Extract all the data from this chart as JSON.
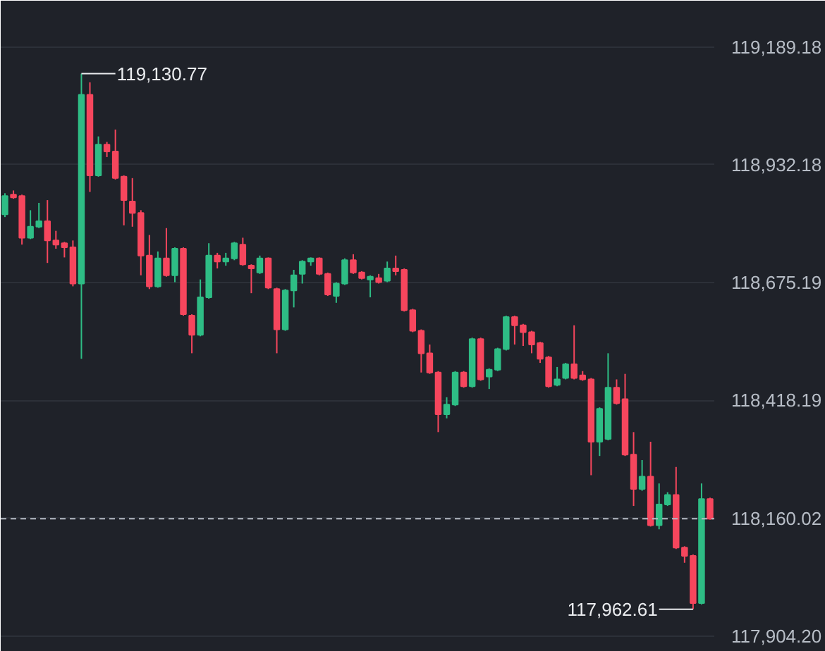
{
  "chart_data": {
    "type": "candlestick",
    "categories": [
      null,
      null,
      null,
      null,
      null,
      null,
      null,
      null,
      null,
      null,
      null,
      null,
      null,
      null,
      null,
      null,
      null,
      null,
      null,
      null,
      null,
      null,
      null,
      null,
      null,
      null,
      null,
      null,
      null,
      null,
      null,
      null,
      null,
      null,
      null,
      null,
      null,
      null,
      null,
      null,
      null,
      null,
      null,
      null,
      null,
      null,
      null,
      null,
      null,
      null,
      null,
      null,
      null,
      null,
      null,
      null,
      null,
      null,
      null,
      null,
      null,
      null,
      null,
      null,
      null,
      null,
      null,
      null,
      null,
      null,
      null,
      null,
      null,
      null,
      null,
      null,
      null,
      null,
      null,
      null,
      null,
      null,
      null,
      null
    ],
    "ohlc": [
      [
        118824,
        118870,
        118818,
        118864
      ],
      [
        118867,
        118876,
        118858,
        118861
      ],
      [
        118864,
        118867,
        118758,
        118773
      ],
      [
        118773,
        118833,
        118770,
        118797
      ],
      [
        118797,
        118849,
        118794,
        118809
      ],
      [
        118809,
        118855,
        118718,
        118767
      ],
      [
        118767,
        118788,
        118749,
        118758
      ],
      [
        118761,
        118764,
        118730,
        118752
      ],
      [
        118752,
        118767,
        118667,
        118673
      ],
      [
        118673,
        119130.77,
        118509,
        119085
      ],
      [
        119085,
        119112,
        118873,
        118909
      ],
      [
        118909,
        118994,
        118906,
        118976
      ],
      [
        118976,
        118982,
        118949,
        118961
      ],
      [
        118961,
        119009,
        118900,
        118903
      ],
      [
        118906,
        118909,
        118800,
        118855
      ],
      [
        118852,
        118903,
        118797,
        118827
      ],
      [
        118827,
        118833,
        118691,
        118734
      ],
      [
        118734,
        118779,
        118661,
        118667
      ],
      [
        118667,
        118743,
        118664,
        118728
      ],
      [
        118728,
        118794,
        118688,
        118691
      ],
      [
        118691,
        118752,
        118676,
        118749
      ],
      [
        118749,
        118752,
        118603,
        118606
      ],
      [
        118603,
        118606,
        118521,
        118561
      ],
      [
        118561,
        118682,
        118558,
        118643
      ],
      [
        118643,
        118761,
        118640,
        118734
      ],
      [
        118734,
        118740,
        118706,
        118721
      ],
      [
        118721,
        118740,
        118712,
        118728
      ],
      [
        118728,
        118764,
        118724,
        118761
      ],
      [
        118758,
        118773,
        118712,
        118715
      ],
      [
        118712,
        118715,
        118652,
        118706
      ],
      [
        118697,
        118734,
        118694,
        118728
      ],
      [
        118728,
        118730,
        118661,
        118664
      ],
      [
        118661,
        118664,
        118521,
        118573
      ],
      [
        118573,
        118661,
        118570,
        118658
      ],
      [
        118658,
        118703,
        118621,
        118691
      ],
      [
        118694,
        118724,
        118673,
        118721
      ],
      [
        118721,
        118730,
        118712,
        118728
      ],
      [
        118728,
        118730,
        118691,
        118694
      ],
      [
        118694,
        118697,
        118646,
        118649
      ],
      [
        118646,
        118676,
        118631,
        118673
      ],
      [
        118673,
        118728,
        118670,
        118724
      ],
      [
        118724,
        118737,
        118694,
        118697
      ],
      [
        118697,
        118700,
        118682,
        118685
      ],
      [
        118682,
        118691,
        118643,
        118688
      ],
      [
        118685,
        118694,
        118673,
        118676
      ],
      [
        118679,
        118721,
        118676,
        118706
      ],
      [
        118706,
        118734,
        118691,
        118700
      ],
      [
        118703,
        118706,
        118612,
        118615
      ],
      [
        118615,
        118618,
        118567,
        118570
      ],
      [
        118570,
        118573,
        118479,
        118521
      ],
      [
        118521,
        118540,
        118476,
        118479
      ],
      [
        118479,
        118482,
        118349,
        118388
      ],
      [
        118388,
        118425,
        118379,
        118409
      ],
      [
        118409,
        118482,
        118406,
        118479
      ],
      [
        118479,
        118482,
        118446,
        118449
      ],
      [
        118449,
        118555,
        118446,
        118552
      ],
      [
        118552,
        118555,
        118461,
        118464
      ],
      [
        118470,
        118488,
        118443,
        118485
      ],
      [
        118485,
        118533,
        118482,
        118530
      ],
      [
        118530,
        118603,
        118527,
        118600
      ],
      [
        118600,
        118603,
        118540,
        118582
      ],
      [
        118582,
        118585,
        118537,
        118567
      ],
      [
        118567,
        118570,
        118521,
        118540
      ],
      [
        118543,
        118546,
        118500,
        118509
      ],
      [
        118512,
        118515,
        118446,
        118449
      ],
      [
        118452,
        118491,
        118449,
        118464
      ],
      [
        118467,
        118500,
        118464,
        118497
      ],
      [
        118497,
        118582,
        118464,
        118467
      ],
      [
        118473,
        118482,
        118461,
        118464
      ],
      [
        118464,
        118467,
        118255,
        118328
      ],
      [
        118328,
        118403,
        118297,
        118400
      ],
      [
        118334,
        118521,
        118331,
        118446
      ],
      [
        118446,
        118464,
        118409,
        118412
      ],
      [
        118421,
        118476,
        118297,
        118300
      ],
      [
        118300,
        118349,
        118188,
        118225
      ],
      [
        118225,
        118288,
        118221,
        118252
      ],
      [
        118252,
        118328,
        118143,
        118146
      ],
      [
        118146,
        118237,
        118137,
        118191
      ],
      [
        118191,
        118218,
        118188,
        118212
      ],
      [
        118212,
        118273,
        118094,
        118097
      ],
      [
        118097,
        118100,
        118064,
        118079
      ],
      [
        118079,
        118082,
        117962.61,
        117976
      ],
      [
        117976,
        118237,
        117973,
        118203
      ],
      [
        118203,
        118206,
        118158,
        118160.02
      ]
    ],
    "colors": [
      "#2ebd85",
      "#f6465d",
      "#f6465d",
      "#2ebd85",
      "#2ebd85",
      "#f6465d",
      "#f6465d",
      "#f6465d",
      "#f6465d",
      "#2ebd85",
      "#f6465d",
      "#2ebd85",
      "#f6465d",
      "#f6465d",
      "#f6465d",
      "#f6465d",
      "#f6465d",
      "#f6465d",
      "#2ebd85",
      "#f6465d",
      "#2ebd85",
      "#f6465d",
      "#f6465d",
      "#2ebd85",
      "#2ebd85",
      "#f6465d",
      "#2ebd85",
      "#2ebd85",
      "#f6465d",
      "#f6465d",
      "#2ebd85",
      "#f6465d",
      "#f6465d",
      "#2ebd85",
      "#2ebd85",
      "#2ebd85",
      "#2ebd85",
      "#f6465d",
      "#f6465d",
      "#2ebd85",
      "#2ebd85",
      "#f6465d",
      "#f6465d",
      "#2ebd85",
      "#f6465d",
      "#2ebd85",
      "#f6465d",
      "#f6465d",
      "#f6465d",
      "#f6465d",
      "#f6465d",
      "#f6465d",
      "#2ebd85",
      "#2ebd85",
      "#f6465d",
      "#2ebd85",
      "#f6465d",
      "#2ebd85",
      "#2ebd85",
      "#2ebd85",
      "#f6465d",
      "#f6465d",
      "#f6465d",
      "#f6465d",
      "#f6465d",
      "#2ebd85",
      "#2ebd85",
      "#f6465d",
      "#f6465d",
      "#f6465d",
      "#2ebd85",
      "#2ebd85",
      "#f6465d",
      "#f6465d",
      "#f6465d",
      "#2ebd85",
      "#f6465d",
      "#2ebd85",
      "#2ebd85",
      "#f6465d",
      "#f6465d",
      "#f6465d",
      "#2ebd85",
      "#f6465d"
    ],
    "ylim": [
      117870,
      119290
    ],
    "yticks": [
      {
        "value": 119189.18,
        "label": "119,189.18"
      },
      {
        "value": 118932.18,
        "label": "118,932.18"
      },
      {
        "value": 118675.19,
        "label": "118,675.19"
      },
      {
        "value": 118418.19,
        "label": "118,418.19"
      },
      {
        "value": 118161.2,
        "label": null
      },
      {
        "value": 117904.2,
        "label": "117,904.20"
      }
    ],
    "tick_labels": "y",
    "grid": "y",
    "annotations": [
      "119,130.77",
      "117,962.61"
    ],
    "ref_lines": [
      {
        "axis": "y",
        "value": 118160.02,
        "label": "118,160.02",
        "color": "#b7bdc6",
        "line_style": "dashed"
      }
    ]
  }
}
